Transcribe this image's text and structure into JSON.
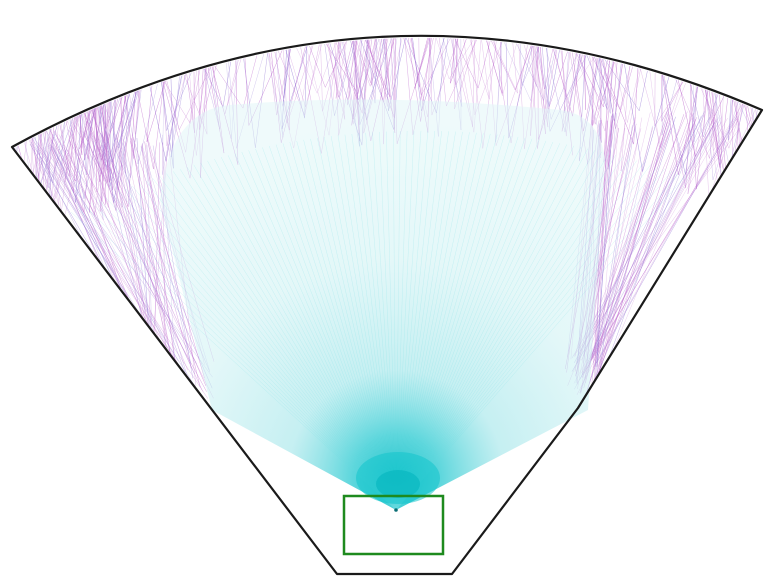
{
  "diagram": {
    "colors": {
      "background": "#ffffff",
      "outline": "#1a1a1a",
      "beam_core": "#12c4cc",
      "beam_mid": "#6fdde2",
      "beam_edge": "#c9f2f4",
      "rays_scattered": "#c070d0",
      "rays_secondary": "#9a80d8",
      "source_box": "#1e8a1e"
    },
    "components": {
      "enclosure": "fan-shaped-housing",
      "source": "emitter-box",
      "beam": "cyan-emission-cone",
      "rays": "scattered-reflection-rays"
    }
  }
}
